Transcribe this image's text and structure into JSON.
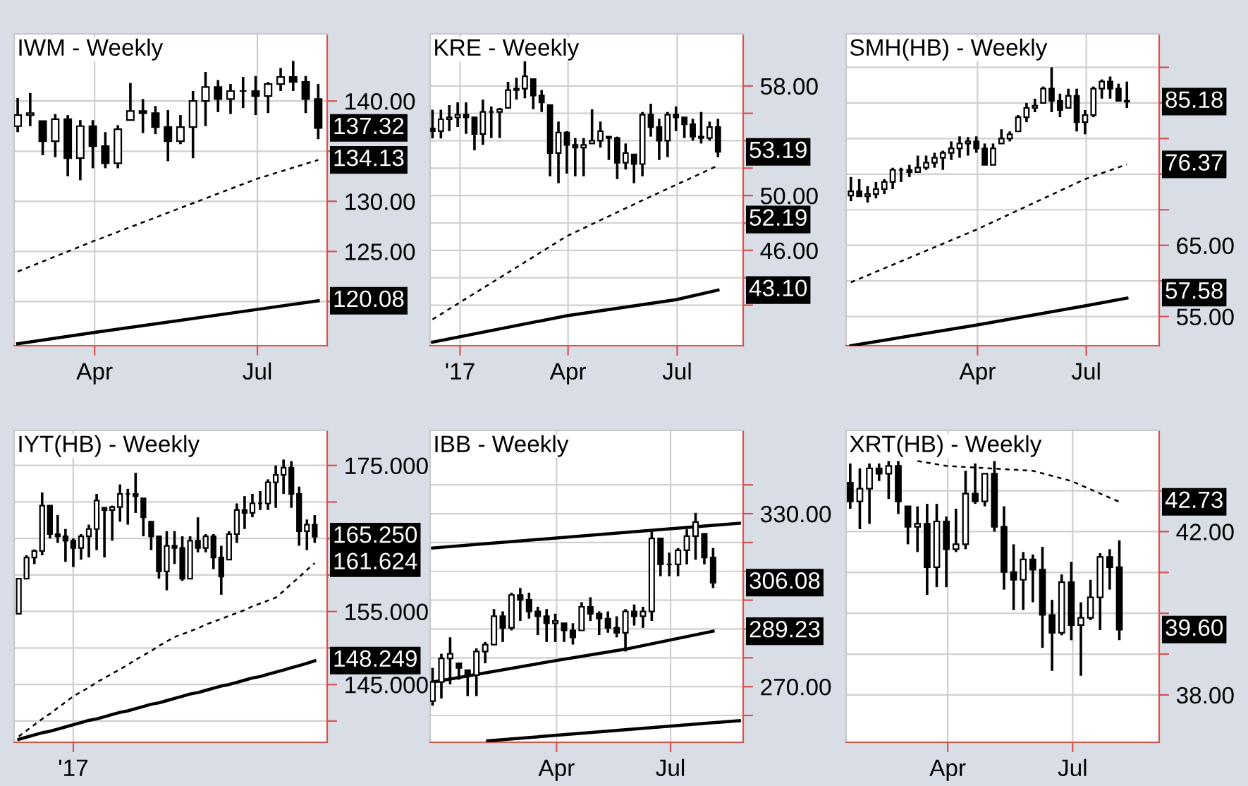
{
  "chart_data": [
    {
      "type": "candlestick",
      "title": "IWM - Weekly",
      "color": "#000000",
      "grid": true,
      "x": [
        "2017-02-17",
        "2017-02-24",
        "2017-03-03",
        "2017-03-10",
        "2017-03-17",
        "2017-03-24",
        "2017-03-31",
        "2017-04-07",
        "2017-04-14",
        "2017-04-21",
        "2017-04-28",
        "2017-05-05",
        "2017-05-12",
        "2017-05-19",
        "2017-05-26",
        "2017-06-02",
        "2017-06-09",
        "2017-06-16",
        "2017-06-23",
        "2017-06-30",
        "2017-07-07",
        "2017-07-14",
        "2017-07-21",
        "2017-07-28",
        "2017-08-04"
      ],
      "ohlc": [
        [
          137.5,
          140.3,
          136.9,
          138.6
        ],
        [
          138.6,
          140.8,
          137.5,
          138.8
        ],
        [
          138.0,
          138.0,
          134.6,
          136.0
        ],
        [
          136.0,
          138.7,
          134.4,
          138.2
        ],
        [
          138.2,
          138.6,
          132.5,
          134.3
        ],
        [
          134.3,
          138.1,
          132.1,
          137.5
        ],
        [
          137.5,
          138.1,
          133.3,
          135.5
        ],
        [
          135.5,
          136.9,
          133.3,
          133.8
        ],
        [
          133.8,
          137.6,
          133.3,
          137.2
        ],
        [
          138.1,
          141.8,
          138.1,
          139.0
        ],
        [
          139.0,
          140.2,
          136.8,
          138.8
        ],
        [
          138.8,
          139.5,
          136.7,
          137.4
        ],
        [
          137.4,
          139.1,
          134.0,
          136.0
        ],
        [
          136.0,
          138.6,
          135.7,
          137.4
        ],
        [
          137.4,
          141.0,
          134.3,
          140.0
        ],
        [
          140.0,
          142.9,
          137.5,
          141.4
        ],
        [
          141.4,
          142.1,
          138.9,
          140.2
        ],
        [
          140.2,
          141.7,
          138.7,
          141.0
        ],
        [
          141.0,
          142.4,
          139.3,
          141.0
        ],
        [
          141.0,
          142.5,
          138.6,
          140.5
        ],
        [
          140.5,
          141.9,
          138.8,
          141.7
        ],
        [
          141.7,
          143.3,
          141.0,
          142.4
        ],
        [
          142.4,
          144.0,
          141.0,
          141.9
        ],
        [
          141.9,
          142.5,
          138.8,
          140.2
        ],
        [
          140.2,
          141.7,
          136.2,
          137.32
        ]
      ],
      "series": [
        {
          "type": "line",
          "color": "#000000",
          "line_style": "dashed",
          "x": [
            "2017-02-17",
            "2017-03-31",
            "2017-06-30",
            "2017-08-04"
          ],
          "values": [
            123.0,
            126.0,
            132.2,
            134.13
          ]
        },
        {
          "type": "line",
          "color": "#000000",
          "line_style": "solid",
          "x": [
            "2017-02-17",
            "2017-03-31",
            "2017-06-30",
            "2017-08-04"
          ],
          "values": [
            115.8,
            116.9,
            119.2,
            120.08
          ]
        }
      ],
      "xlim": [
        "2017-02-15",
        "2017-08-09"
      ],
      "ylim": [
        115.6,
        146.7
      ],
      "xticks": [
        {
          "value": "2017-04-01",
          "label": "Apr"
        },
        {
          "value": "2017-07-01",
          "label": "Jul"
        }
      ],
      "yticks": [
        {
          "value": 120,
          "label": null
        },
        {
          "value": 125,
          "label": "125.00"
        },
        {
          "value": 130,
          "label": "130.00"
        },
        {
          "value": 135,
          "label": null
        },
        {
          "value": 140,
          "label": "140.00"
        }
      ],
      "annotations": [
        {
          "text": "137.32",
          "x": "2017-08-04",
          "y": 137.32
        },
        {
          "text": "134.13",
          "x": "2017-08-04",
          "y": 134.13
        },
        {
          "text": "120.08",
          "x": "2017-08-04",
          "y": 120.08
        }
      ]
    },
    {
      "type": "candlestick",
      "title": "KRE - Weekly",
      "color": "#000000",
      "grid": true,
      "x": [
        "2016-12-09",
        "2016-12-16",
        "2016-12-23",
        "2016-12-30",
        "2017-01-06",
        "2017-01-13",
        "2017-01-20",
        "2017-01-27",
        "2017-02-03",
        "2017-02-10",
        "2017-02-17",
        "2017-02-24",
        "2017-03-03",
        "2017-03-10",
        "2017-03-17",
        "2017-03-24",
        "2017-03-31",
        "2017-04-07",
        "2017-04-14",
        "2017-04-21",
        "2017-04-28",
        "2017-05-05",
        "2017-05-12",
        "2017-05-19",
        "2017-05-26",
        "2017-06-02",
        "2017-06-09",
        "2017-06-16",
        "2017-06-23",
        "2017-06-30",
        "2017-07-07",
        "2017-07-14",
        "2017-07-21",
        "2017-07-28",
        "2017-08-04"
      ],
      "ohlc": [
        [
          54.9,
          56.26,
          54.17,
          54.7
        ],
        [
          54.7,
          56.26,
          54.17,
          55.57
        ],
        [
          55.57,
          56.6,
          54.7,
          55.7
        ],
        [
          55.7,
          56.8,
          55.0,
          55.9
        ],
        [
          55.9,
          56.8,
          54.5,
          55.7
        ],
        [
          55.7,
          55.7,
          53.3,
          54.5
        ],
        [
          54.5,
          57.0,
          53.7,
          56.1
        ],
        [
          56.1,
          56.5,
          54.2,
          56.1
        ],
        [
          56.1,
          56.4,
          54.2,
          56.3
        ],
        [
          56.4,
          58.3,
          56.4,
          57.7
        ],
        [
          57.7,
          58.6,
          57.0,
          57.8
        ],
        [
          57.8,
          59.8,
          57.1,
          58.7
        ],
        [
          58.5,
          58.5,
          56.3,
          57.3
        ],
        [
          57.3,
          57.7,
          56.1,
          56.8
        ],
        [
          56.6,
          56.6,
          51.4,
          53.1
        ],
        [
          53.1,
          55.4,
          50.9,
          54.6
        ],
        [
          54.6,
          54.7,
          51.6,
          53.7
        ],
        [
          53.7,
          54.2,
          51.4,
          53.5
        ],
        [
          53.5,
          54.2,
          51.4,
          53.7
        ],
        [
          53.8,
          56.3,
          53.8,
          54.0
        ],
        [
          54.0,
          55.4,
          53.5,
          54.7
        ],
        [
          54.3,
          54.3,
          52.6,
          54.2
        ],
        [
          54.2,
          54.3,
          51.2,
          52.4
        ],
        [
          52.4,
          53.8,
          51.9,
          53.1
        ],
        [
          53.0,
          53.0,
          50.9,
          52.3
        ],
        [
          52.3,
          56.1,
          51.4,
          55.9
        ],
        [
          55.9,
          56.7,
          54.3,
          55.0
        ],
        [
          55.0,
          55.6,
          52.6,
          54.0
        ],
        [
          54.0,
          56.1,
          52.8,
          55.9
        ],
        [
          55.9,
          56.5,
          54.7,
          55.7
        ],
        [
          55.7,
          55.7,
          54.2,
          55.2
        ],
        [
          55.2,
          55.6,
          54.0,
          54.3
        ],
        [
          54.3,
          56.1,
          53.8,
          54.2
        ],
        [
          54.2,
          55.4,
          54.0,
          55.0
        ],
        [
          55.0,
          55.6,
          52.8,
          53.19
        ]
      ],
      "series": [
        {
          "type": "line",
          "color": "#000000",
          "line_style": "dashed",
          "x": [
            "2016-12-09",
            "2017-03-31",
            "2017-06-02",
            "2017-08-04"
          ],
          "values": [
            40.96,
            47.04,
            49.65,
            52.19
          ]
        },
        {
          "type": "line",
          "color": "#000000",
          "line_style": "solid",
          "x": [
            "2016-12-09",
            "2017-03-31",
            "2017-06-30",
            "2017-08-04"
          ],
          "values": [
            39.3,
            41.23,
            42.4,
            43.1
          ]
        }
      ],
      "xlim": [
        "2016-12-07",
        "2017-08-25"
      ],
      "ylim": [
        39.04,
        61.8
      ],
      "xticks": [
        {
          "value": "2017-01-01",
          "label": "'17"
        },
        {
          "value": "2017-04-01",
          "label": "Apr"
        },
        {
          "value": "2017-07-01",
          "label": "Jul"
        }
      ],
      "yticks": [
        {
          "value": 42,
          "label": null
        },
        {
          "value": 44,
          "label": null
        },
        {
          "value": 46,
          "label": "46.00"
        },
        {
          "value": 48,
          "label": null
        },
        {
          "value": 50,
          "label": "50.00"
        },
        {
          "value": 52,
          "label": null
        },
        {
          "value": 54,
          "label": null
        },
        {
          "value": 56,
          "label": null
        },
        {
          "value": 58,
          "label": "58.00"
        }
      ],
      "annotations": [
        {
          "text": "53.19",
          "x": "2017-08-04",
          "y": 53.19
        },
        {
          "text": "52.19",
          "x": "2017-08-04",
          "y": 52.19
        },
        {
          "text": "43.10",
          "x": "2017-08-04",
          "y": 43.1
        }
      ]
    },
    {
      "type": "candlestick",
      "title": "SMH(HB) - Weekly",
      "color": "#000000",
      "grid": true,
      "x": [
        "2016-12-16",
        "2016-12-23",
        "2016-12-30",
        "2017-01-06",
        "2017-01-13",
        "2017-01-20",
        "2017-01-27",
        "2017-02-03",
        "2017-02-10",
        "2017-02-17",
        "2017-02-24",
        "2017-03-03",
        "2017-03-10",
        "2017-03-17",
        "2017-03-24",
        "2017-03-31",
        "2017-04-07",
        "2017-04-14",
        "2017-04-21",
        "2017-04-28",
        "2017-05-05",
        "2017-05-12",
        "2017-05-19",
        "2017-05-26",
        "2017-06-02",
        "2017-06-09",
        "2017-06-16",
        "2017-06-23",
        "2017-06-30",
        "2017-07-07",
        "2017-07-14",
        "2017-07-21",
        "2017-07-28",
        "2017-08-04"
      ],
      "ohlc": [
        [
          72.0,
          74.6,
          71.2,
          72.6
        ],
        [
          72.6,
          74.3,
          71.9,
          71.9
        ],
        [
          71.9,
          73.3,
          71.0,
          72.2
        ],
        [
          72.2,
          73.9,
          71.6,
          72.9
        ],
        [
          72.9,
          74.3,
          72.2,
          73.9
        ],
        [
          73.9,
          75.9,
          72.9,
          75.6
        ],
        [
          75.6,
          75.9,
          73.9,
          75.6
        ],
        [
          75.6,
          76.3,
          74.6,
          75.3
        ],
        [
          75.3,
          77.6,
          75.3,
          75.9
        ],
        [
          75.9,
          77.6,
          75.6,
          76.6
        ],
        [
          76.6,
          78.0,
          75.9,
          77.3
        ],
        [
          77.3,
          78.3,
          75.6,
          78.0
        ],
        [
          78.0,
          79.6,
          77.0,
          78.6
        ],
        [
          78.6,
          80.3,
          77.3,
          79.3
        ],
        [
          79.3,
          80.2,
          77.6,
          79.6
        ],
        [
          79.6,
          80.3,
          78.0,
          78.6
        ],
        [
          78.6,
          79.3,
          76.3,
          76.3
        ],
        [
          76.3,
          79.3,
          76.3,
          78.6
        ],
        [
          79.3,
          81.3,
          79.3,
          80.0
        ],
        [
          80.0,
          81.0,
          79.6,
          80.6
        ],
        [
          81.0,
          83.3,
          81.0,
          83.0
        ],
        [
          83.0,
          85.0,
          82.3,
          84.3
        ],
        [
          84.3,
          85.6,
          83.7,
          84.6
        ],
        [
          85.0,
          87.3,
          85.0,
          87.0
        ],
        [
          87.0,
          90.0,
          83.7,
          85.3
        ],
        [
          85.3,
          86.3,
          83.0,
          84.0
        ],
        [
          84.3,
          87.0,
          84.3,
          86.0
        ],
        [
          86.0,
          87.0,
          81.0,
          82.3
        ],
        [
          82.3,
          84.0,
          80.6,
          83.3
        ],
        [
          83.3,
          87.3,
          83.0,
          87.0
        ],
        [
          87.0,
          88.3,
          85.6,
          88.0
        ],
        [
          88.0,
          88.7,
          85.6,
          87.0
        ],
        [
          87.0,
          87.7,
          85.3,
          85.3
        ],
        [
          85.3,
          88.0,
          84.3,
          85.18
        ]
      ],
      "series": [
        {
          "type": "line",
          "color": "#000000",
          "line_style": "dashed",
          "x": [
            "2016-12-16",
            "2017-03-31",
            "2017-06-30",
            "2017-08-04"
          ],
          "values": [
            59.8,
            67.2,
            74.3,
            76.37
          ]
        },
        {
          "type": "line",
          "color": "#000000",
          "line_style": "solid",
          "x": [
            "2016-12-16",
            "2017-03-31",
            "2017-06-30",
            "2017-08-04"
          ],
          "values": [
            50.9,
            53.8,
            56.5,
            57.58
          ]
        }
      ],
      "xlim": [
        "2016-12-12",
        "2017-08-31"
      ],
      "ylim": [
        50.9,
        94.7
      ],
      "xticks": [
        {
          "value": "2017-04-01",
          "label": "Apr"
        },
        {
          "value": "2017-07-01",
          "label": "Jul"
        }
      ],
      "yticks": [
        {
          "value": 55,
          "label": "55.00"
        },
        {
          "value": 60,
          "label": null
        },
        {
          "value": 65,
          "label": "65.00"
        },
        {
          "value": 70,
          "label": null
        },
        {
          "value": 75,
          "label": null
        },
        {
          "value": 80,
          "label": null
        },
        {
          "value": 85,
          "label": null
        },
        {
          "value": 90,
          "label": null
        }
      ],
      "annotations": [
        {
          "text": "85.18",
          "x": "2017-08-04",
          "y": 85.18
        },
        {
          "text": "76.37",
          "x": "2017-08-04",
          "y": 76.37
        },
        {
          "text": "57.58",
          "x": "2017-08-04",
          "y": 57.58
        }
      ]
    },
    {
      "type": "candlestick",
      "title": "IYT(HB) - Weekly",
      "color": "#000000",
      "grid": true,
      "categories": [
        null,
        null,
        null,
        null,
        null,
        null,
        null,
        "'17",
        null,
        null,
        null,
        null,
        null,
        null,
        null,
        null,
        null,
        null,
        null,
        null,
        null,
        null,
        null,
        null,
        null,
        null,
        null,
        null,
        null,
        null,
        null,
        null,
        null,
        null,
        null,
        null,
        null,
        null,
        null
      ],
      "ohlc": [
        [
          154.7,
          159.5,
          154.7,
          159.5
        ],
        [
          159.5,
          162.7,
          159.5,
          162.4
        ],
        [
          162.4,
          163.5,
          161.5,
          163.3
        ],
        [
          163.3,
          171.3,
          162.7,
          169.5
        ],
        [
          169.5,
          169.5,
          165.0,
          165.6
        ],
        [
          165.6,
          168.2,
          164.4,
          165.3
        ],
        [
          165.3,
          166.3,
          161.8,
          164.7
        ],
        [
          164.7,
          165.0,
          161.1,
          163.7
        ],
        [
          163.7,
          165.6,
          162.1,
          165.3
        ],
        [
          165.3,
          166.9,
          162.4,
          166.3
        ],
        [
          166.3,
          171.1,
          163.4,
          170.2
        ],
        [
          169.2,
          169.2,
          162.4,
          168.9
        ],
        [
          168.9,
          169.5,
          164.7,
          169.3
        ],
        [
          169.3,
          172.4,
          167.3,
          171.1
        ],
        [
          171.1,
          171.8,
          166.9,
          171.1
        ],
        [
          171.1,
          174.0,
          168.5,
          170.8
        ],
        [
          170.5,
          170.5,
          165.3,
          167.9
        ],
        [
          167.3,
          167.3,
          163.4,
          165.3
        ],
        [
          165.3,
          165.3,
          159.5,
          160.5
        ],
        [
          160.5,
          166.0,
          157.9,
          164.0
        ],
        [
          164.0,
          166.0,
          161.5,
          163.7
        ],
        [
          163.7,
          165.3,
          159.2,
          159.5
        ],
        [
          159.5,
          165.3,
          159.5,
          164.7
        ],
        [
          164.7,
          167.9,
          163.1,
          163.7
        ],
        [
          163.7,
          165.6,
          163.1,
          165.3
        ],
        [
          165.3,
          165.6,
          160.8,
          162.4
        ],
        [
          162.4,
          164.0,
          157.3,
          159.8
        ],
        [
          162.1,
          166.0,
          162.1,
          165.6
        ],
        [
          165.6,
          169.8,
          164.4,
          168.9
        ],
        [
          168.9,
          170.8,
          166.3,
          168.5
        ],
        [
          168.5,
          171.1,
          167.9,
          169.8
        ],
        [
          169.8,
          171.5,
          168.9,
          169.8
        ],
        [
          169.8,
          173.1,
          168.9,
          172.7
        ],
        [
          172.7,
          175.0,
          169.2,
          173.7
        ],
        [
          173.7,
          175.8,
          171.1,
          174.7
        ],
        [
          174.7,
          175.6,
          169.2,
          171.1
        ],
        [
          171.1,
          172.1,
          164.0,
          166.0
        ],
        [
          166.0,
          167.6,
          163.4,
          166.9
        ],
        [
          166.9,
          168.2,
          164.4,
          165.25
        ]
      ],
      "series": [
        {
          "type": "line",
          "color": "#000000",
          "line_style": "dashed",
          "values": [
            137.9,
            138.7,
            139.5,
            140.3,
            141.0,
            141.8,
            142.6,
            143.4,
            144.0,
            144.6,
            145.3,
            145.9,
            146.5,
            147.1,
            147.7,
            148.4,
            149.0,
            149.6,
            150.3,
            150.9,
            151.5,
            151.9,
            152.3,
            152.7,
            153.2,
            153.6,
            154.0,
            154.4,
            154.8,
            155.2,
            155.7,
            156.1,
            156.5,
            156.9,
            157.8,
            158.8,
            159.7,
            160.7,
            161.624
          ]
        },
        {
          "type": "line",
          "color": "#000000",
          "line_style": "solid",
          "values": [
            137.5,
            137.8,
            138.1,
            138.4,
            138.6,
            138.9,
            139.2,
            139.5,
            139.8,
            140.1,
            140.3,
            140.6,
            140.9,
            141.2,
            141.4,
            141.7,
            142.0,
            142.3,
            142.5,
            142.8,
            143.1,
            143.4,
            143.7,
            143.9,
            144.2,
            144.5,
            144.8,
            145.0,
            145.3,
            145.6,
            145.9,
            146.1,
            146.4,
            146.7,
            147.0,
            147.3,
            147.6,
            147.9,
            148.249
          ]
        }
      ],
      "ylim": [
        137.1,
        179.8
      ],
      "yticks": [
        {
          "value": 140,
          "label": null
        },
        {
          "value": 145,
          "label": "145.000"
        },
        {
          "value": 150,
          "label": null
        },
        {
          "value": 155,
          "label": "155.000"
        },
        {
          "value": 160,
          "label": null
        },
        {
          "value": 165,
          "label": null
        },
        {
          "value": 170,
          "label": null
        },
        {
          "value": 175,
          "label": "175.000"
        }
      ],
      "annotations": [
        "165.250",
        "161.624",
        "148.249"
      ]
    },
    {
      "type": "candlestick",
      "title": "IBB - Weekly",
      "color": "#000000",
      "grid": true,
      "x": [
        "2016-12-23",
        "2016-12-30",
        "2017-01-06",
        "2017-01-13",
        "2017-01-20",
        "2017-01-27",
        "2017-02-03",
        "2017-02-10",
        "2017-02-17",
        "2017-02-24",
        "2017-03-03",
        "2017-03-10",
        "2017-03-17",
        "2017-03-24",
        "2017-03-31",
        "2017-04-07",
        "2017-04-14",
        "2017-04-21",
        "2017-04-28",
        "2017-05-05",
        "2017-05-12",
        "2017-05-19",
        "2017-05-26",
        "2017-06-02",
        "2017-06-09",
        "2017-06-16",
        "2017-06-23",
        "2017-06-30",
        "2017-07-07",
        "2017-07-14",
        "2017-07-21",
        "2017-07-28",
        "2017-08-04"
      ],
      "ohlc": [
        [
          265.0,
          276.5,
          263.4,
          271.6
        ],
        [
          271.6,
          281.4,
          265.9,
          279.8
        ],
        [
          279.8,
          287.1,
          270.8,
          281.4
        ],
        [
          278.1,
          278.1,
          272.4,
          276.5
        ],
        [
          275.7,
          275.7,
          266.7,
          274.0
        ],
        [
          274.0,
          283.3,
          266.7,
          282.2
        ],
        [
          282.2,
          285.5,
          278.1,
          284.6
        ],
        [
          284.6,
          296.9,
          284.6,
          294.4
        ],
        [
          294.4,
          296.1,
          285.5,
          290.4
        ],
        [
          290.4,
          302.6,
          289.5,
          301.8
        ],
        [
          301.8,
          304.2,
          292.8,
          300.1
        ],
        [
          300.1,
          302.6,
          293.6,
          296.1
        ],
        [
          296.1,
          297.7,
          287.9,
          294.4
        ],
        [
          294.4,
          296.9,
          285.5,
          292.0
        ],
        [
          292.0,
          295.3,
          285.5,
          292.8
        ],
        [
          292.0,
          292.0,
          285.5,
          289.5
        ],
        [
          289.5,
          292.0,
          284.6,
          287.1
        ],
        [
          289.5,
          299.3,
          289.5,
          297.7
        ],
        [
          297.7,
          301.0,
          292.8,
          295.3
        ],
        [
          295.3,
          296.1,
          287.9,
          293.6
        ],
        [
          293.6,
          296.1,
          288.7,
          290.4
        ],
        [
          290.4,
          294.4,
          287.1,
          288.7
        ],
        [
          288.7,
          296.9,
          282.2,
          296.1
        ],
        [
          296.1,
          298.5,
          291.2,
          294.4
        ],
        [
          294.4,
          297.7,
          290.4,
          296.1
        ],
        [
          296.1,
          323.8,
          292.8,
          321.4
        ],
        [
          321.4,
          321.4,
          308.3,
          312.4
        ],
        [
          312.4,
          316.5,
          308.3,
          312.4
        ],
        [
          312.4,
          318.1,
          308.3,
          317.3
        ],
        [
          317.3,
          324.6,
          312.4,
          322.2
        ],
        [
          322.2,
          330.3,
          314.0,
          327.1
        ],
        [
          323.0,
          323.0,
          312.4,
          314.8
        ],
        [
          314.8,
          318.1,
          304.2,
          306.08
        ]
      ],
      "series": [
        {
          "type": "line",
          "color": "#000000",
          "line_style": "solid",
          "x": [
            "2016-12-23",
            "2017-03-31",
            "2017-05-26",
            "2017-08-04"
          ],
          "values": [
            271.6,
            279.0,
            283.0,
            289.23
          ]
        },
        {
          "type": "line",
          "color": "#000000",
          "line_style": "solid",
          "x": [
            "2016-12-23",
            "2017-08-25"
          ],
          "values": [
            318.1,
            326.7
          ]
        },
        {
          "type": "line",
          "color": "#000000",
          "line_style": "solid",
          "x": [
            "2017-02-05",
            "2017-08-25"
          ],
          "values": [
            251.2,
            258.2
          ]
        }
      ],
      "xlim": [
        "2016-12-21",
        "2017-08-28"
      ],
      "ylim": [
        250.7,
        358.9
      ],
      "xticks": [
        {
          "value": "2017-04-01",
          "label": "Apr"
        },
        {
          "value": "2017-07-01",
          "label": "Jul"
        }
      ],
      "yticks": [
        {
          "value": 260,
          "label": null
        },
        {
          "value": 270,
          "label": "270.00"
        },
        {
          "value": 280,
          "label": null
        },
        {
          "value": 290,
          "label": null
        },
        {
          "value": 300,
          "label": null
        },
        {
          "value": 310,
          "label": null
        },
        {
          "value": 320,
          "label": null
        },
        {
          "value": 330,
          "label": "330.00"
        },
        {
          "value": 340,
          "label": null
        }
      ],
      "annotations": [
        {
          "text": "306.08",
          "x": "2017-08-04",
          "y": 306.08
        },
        {
          "text": "289.23",
          "x": "2017-08-04",
          "y": 289.23
        }
      ]
    },
    {
      "type": "candlestick",
      "title": "XRT(HB) - Weekly",
      "color": "#000000",
      "grid": true,
      "x": [
        "2017-01-20",
        "2017-01-27",
        "2017-02-03",
        "2017-02-10",
        "2017-02-17",
        "2017-02-24",
        "2017-03-03",
        "2017-03-10",
        "2017-03-17",
        "2017-03-24",
        "2017-03-31",
        "2017-04-07",
        "2017-04-14",
        "2017-04-21",
        "2017-04-28",
        "2017-05-05",
        "2017-05-12",
        "2017-05-19",
        "2017-05-26",
        "2017-06-02",
        "2017-06-09",
        "2017-06-16",
        "2017-06-23",
        "2017-06-30",
        "2017-07-07",
        "2017-07-14",
        "2017-07-21",
        "2017-07-28",
        "2017-08-04"
      ],
      "ohlc": [
        [
          43.2,
          43.67,
          42.56,
          42.74
        ],
        [
          42.74,
          43.55,
          42.06,
          43.05
        ],
        [
          43.05,
          43.67,
          42.19,
          43.55
        ],
        [
          43.55,
          43.67,
          43.24,
          43.42
        ],
        [
          43.42,
          43.73,
          42.8,
          43.61
        ],
        [
          43.61,
          43.73,
          42.43,
          42.74
        ],
        [
          42.62,
          42.62,
          41.69,
          42.12
        ],
        [
          42.12,
          42.62,
          41.5,
          42.19
        ],
        [
          42.19,
          42.68,
          40.45,
          41.13
        ],
        [
          41.13,
          42.68,
          40.64,
          42.25
        ],
        [
          42.25,
          42.37,
          40.64,
          41.57
        ],
        [
          41.57,
          42.56,
          41.5,
          41.69
        ],
        [
          41.69,
          43.49,
          41.57,
          42.93
        ],
        [
          42.93,
          43.67,
          42.68,
          42.74
        ],
        [
          42.74,
          43.42,
          42.62,
          43.42
        ],
        [
          43.42,
          43.73,
          42.0,
          42.12
        ],
        [
          42.12,
          42.62,
          40.58,
          41.01
        ],
        [
          41.01,
          41.69,
          40.08,
          40.82
        ],
        [
          40.82,
          41.5,
          40.08,
          41.32
        ],
        [
          41.32,
          41.44,
          40.27,
          41.07
        ],
        [
          41.07,
          41.63,
          39.15,
          39.96
        ],
        [
          39.96,
          40.33,
          38.59,
          39.52
        ],
        [
          39.52,
          40.95,
          39.46,
          40.76
        ],
        [
          40.76,
          41.26,
          39.34,
          39.71
        ],
        [
          39.71,
          40.27,
          38.47,
          39.89
        ],
        [
          39.89,
          40.82,
          39.83,
          40.39
        ],
        [
          40.39,
          41.47,
          39.59,
          41.38
        ],
        [
          41.38,
          41.57,
          40.58,
          41.13
        ],
        [
          41.13,
          41.79,
          39.34,
          39.6
        ]
      ],
      "series": [
        {
          "type": "line",
          "color": "#000000",
          "line_style": "dashed",
          "x": [
            "2017-03-10",
            "2017-03-31",
            "2017-06-02",
            "2017-06-30",
            "2017-08-04"
          ],
          "values": [
            43.73,
            43.61,
            43.49,
            43.24,
            42.73
          ]
        }
      ],
      "xlim": [
        "2017-01-17",
        "2017-09-02"
      ],
      "ylim": [
        36.84,
        44.48
      ],
      "xticks": [
        {
          "value": "2017-04-01",
          "label": "Apr"
        },
        {
          "value": "2017-07-01",
          "label": "Jul"
        }
      ],
      "yticks": [
        {
          "value": 38,
          "label": "38.00"
        },
        {
          "value": 39,
          "label": null
        },
        {
          "value": 40,
          "label": null
        },
        {
          "value": 41,
          "label": null
        },
        {
          "value": 42,
          "label": "42.00"
        },
        {
          "value": 43,
          "label": null
        }
      ],
      "annotations": [
        {
          "text": "42.73",
          "x": "2017-08-04",
          "y": 42.73
        },
        {
          "text": "39.60",
          "x": "2017-08-04",
          "y": 39.6
        }
      ]
    }
  ]
}
